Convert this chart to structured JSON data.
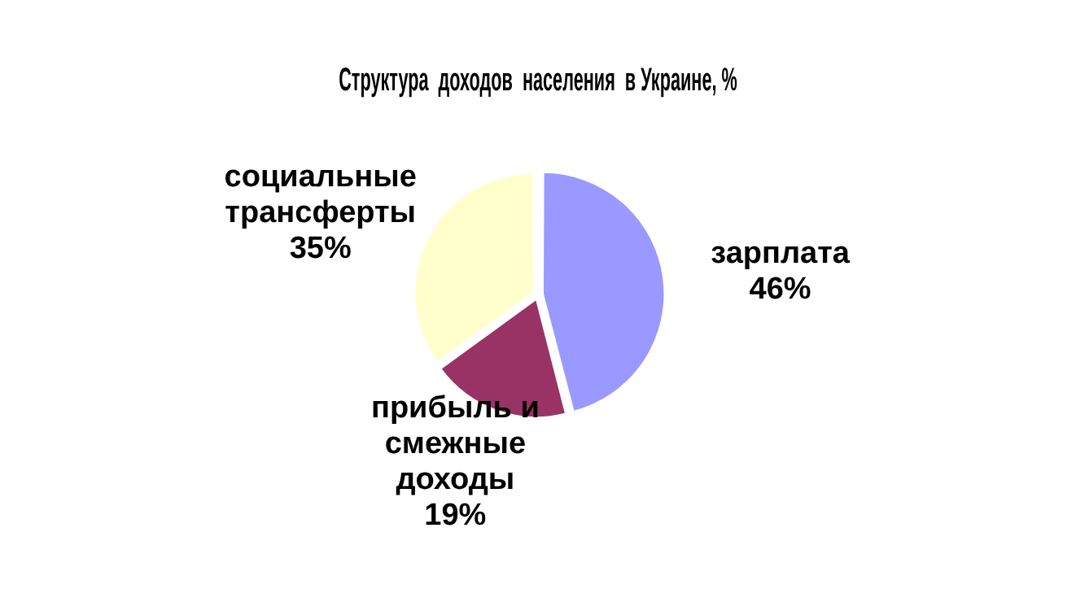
{
  "chart_data": {
    "type": "pie",
    "title": "Структура  доходов  населения  в Украине, %",
    "categories": [
      "зарплата",
      "прибыль и смежные доходы",
      "социальные трансферты"
    ],
    "values": [
      46,
      19,
      35
    ],
    "value_labels": [
      "46%",
      "19%",
      "35%"
    ],
    "colors": [
      "#9999ff",
      "#993366",
      "#ffffcc"
    ],
    "legend": false
  }
}
